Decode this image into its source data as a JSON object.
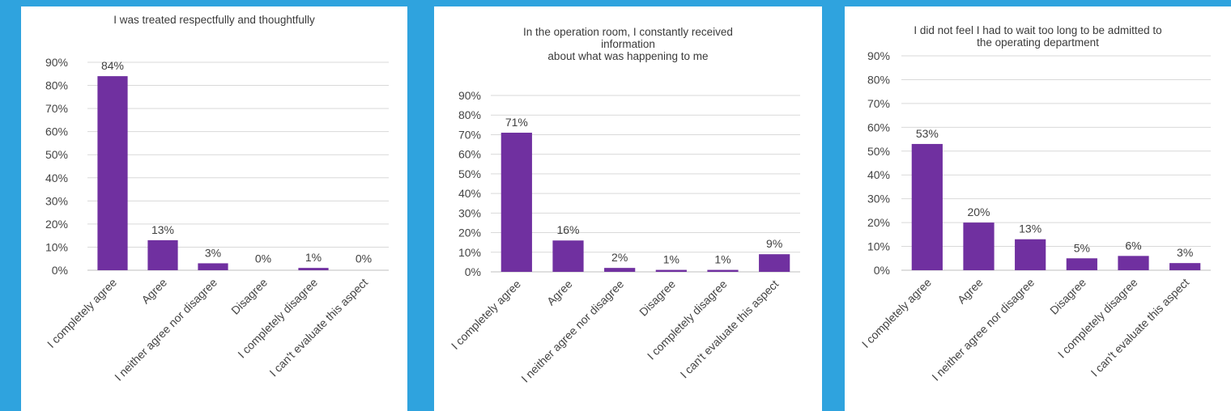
{
  "colors": {
    "background": "#2fa3de",
    "panel": "#ffffff",
    "bar": "#7030a0",
    "gridline": "#d9d9d9",
    "text": "#404040"
  },
  "chart_data": [
    {
      "type": "bar",
      "title_lines": [
        "I was treated respectfully and thoughtfully"
      ],
      "categories": [
        "I completely agree",
        "Agree",
        "I neither agree nor disagree",
        "Disagree",
        "I completely disagree",
        "I can't evaluate this aspect"
      ],
      "values": [
        84,
        13,
        3,
        0,
        1,
        0
      ],
      "data_labels": [
        "84%",
        "13%",
        "3%",
        "0%",
        "1%",
        "0%"
      ],
      "ylim": [
        0,
        90
      ],
      "yticks": [
        "0%",
        "10%",
        "20%",
        "30%",
        "40%",
        "50%",
        "60%",
        "70%",
        "80%",
        "90%"
      ],
      "grid": true,
      "legend": "none"
    },
    {
      "type": "bar",
      "title_lines": [
        "In the operation room, I constantly received",
        "information",
        "about what was happening to me"
      ],
      "categories": [
        "I completely agree",
        "Agree",
        "I neither agree nor disagree",
        "Disagree",
        "I completely disagree",
        "I can't evaluate this aspect"
      ],
      "values": [
        71,
        16,
        2,
        1,
        1,
        9
      ],
      "data_labels": [
        "71%",
        "16%",
        "2%",
        "1%",
        "1%",
        "9%"
      ],
      "ylim": [
        0,
        90
      ],
      "yticks": [
        "0%",
        "10%",
        "20%",
        "30%",
        "40%",
        "50%",
        "60%",
        "70%",
        "80%",
        "90%"
      ],
      "grid": true,
      "legend": "none"
    },
    {
      "type": "bar",
      "title_lines": [
        "I did not feel I had to wait too long to be admitted to",
        "the operating department"
      ],
      "categories": [
        "I completely agree",
        "Agree",
        "I neither agree nor disagree",
        "Disagree",
        "I completely disagree",
        "I can't evaluate this aspect"
      ],
      "values": [
        53,
        20,
        13,
        5,
        6,
        3
      ],
      "data_labels": [
        "53%",
        "20%",
        "13%",
        "5%",
        "6%",
        "3%"
      ],
      "ylim": [
        0,
        90
      ],
      "yticks": [
        "0%",
        "10%",
        "20%",
        "30%",
        "40%",
        "50%",
        "60%",
        "70%",
        "80%",
        "90%"
      ],
      "grid": true,
      "legend": "none"
    }
  ]
}
